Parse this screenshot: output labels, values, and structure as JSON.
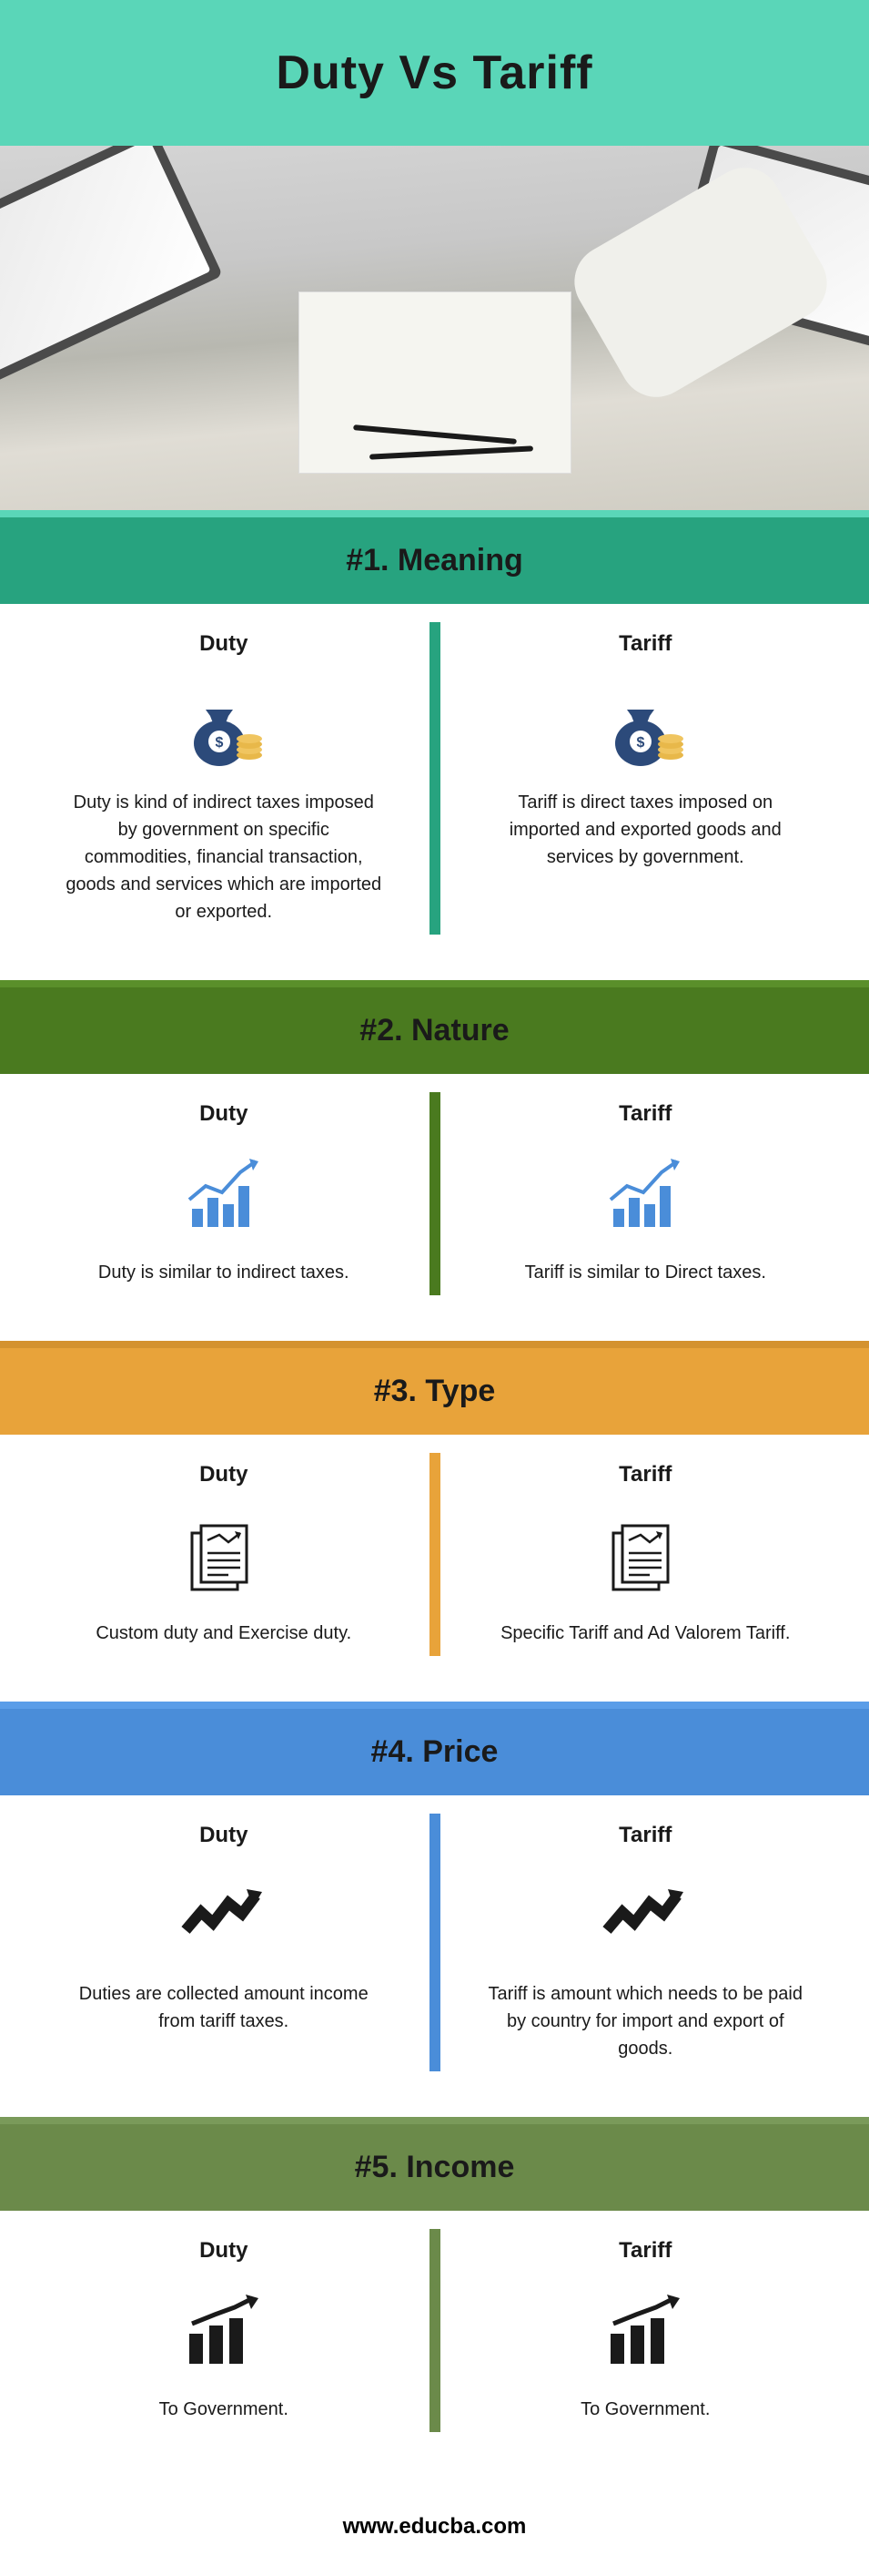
{
  "title": "Duty Vs Tariff",
  "footer": "www.educba.com",
  "sections": [
    {
      "header": "#1. Meaning",
      "header_bg": "#27a37f",
      "thin_bar": "#5ad6b8",
      "divider": "#27a37f",
      "icon": "money-bag",
      "left_label": "Duty",
      "right_label": "Tariff",
      "left_text": "Duty is kind of indirect taxes imposed by government on specific commodities, financial transaction, goods and services which are imported or exported.",
      "right_text": "Tariff is direct taxes imposed on imported and exported goods and services by government."
    },
    {
      "header": "#2. Nature",
      "header_bg": "#4a7a1f",
      "thin_bar": "#5a8f2a",
      "divider": "#4a7a1f",
      "icon": "bar-trend",
      "left_label": "Duty",
      "right_label": "Tariff",
      "left_text": "Duty is similar to indirect taxes.",
      "right_text": "Tariff is similar to Direct taxes."
    },
    {
      "header": "#3. Type",
      "header_bg": "#e8a33a",
      "thin_bar": "#d4922f",
      "divider": "#e8a33a",
      "icon": "documents",
      "left_label": "Duty",
      "right_label": "Tariff",
      "left_text": "Custom duty and Exercise duty.",
      "right_text": "Specific Tariff and Ad Valorem Tariff."
    },
    {
      "header": "#4. Price",
      "header_bg": "#4a8dd9",
      "thin_bar": "#5a9de8",
      "divider": "#4a8dd9",
      "icon": "zigzag-arrow",
      "left_label": "Duty",
      "right_label": "Tariff",
      "left_text": "Duties are collected amount income from tariff taxes.",
      "right_text": "Tariff is amount which needs to be paid by country for import and export of goods."
    },
    {
      "header": "#5. Income",
      "header_bg": "#6b8a4a",
      "thin_bar": "#7a9a5a",
      "divider": "#6b8a4a",
      "icon": "bars-arrow",
      "left_label": "Duty",
      "right_label": "Tariff",
      "left_text": "To Government.",
      "right_text": "To Government."
    }
  ]
}
